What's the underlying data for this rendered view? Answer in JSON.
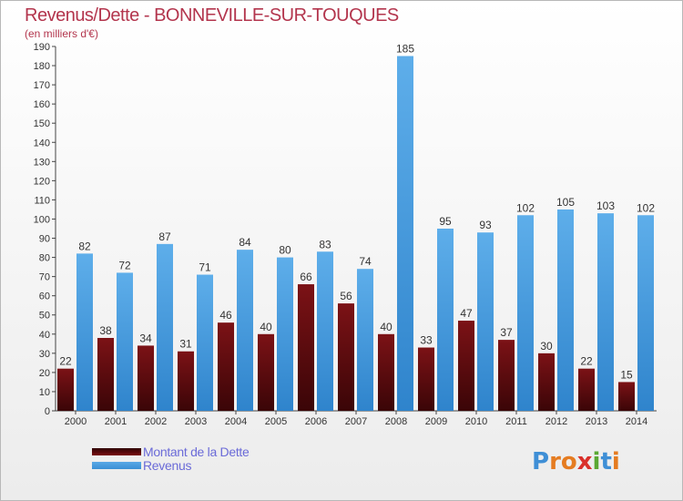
{
  "header": {
    "title": "Revenus/Dette - BONNEVILLE-SUR-TOUQUES",
    "subtitle": "(en milliers d'€)"
  },
  "chart_data": {
    "type": "bar",
    "categories": [
      "2000",
      "2001",
      "2002",
      "2003",
      "2004",
      "2005",
      "2006",
      "2007",
      "2008",
      "2009",
      "2010",
      "2011",
      "2012",
      "2013",
      "2014"
    ],
    "series": [
      {
        "name": "Montant de la Dette",
        "color": "#6e0b0e",
        "values": [
          22,
          38,
          34,
          31,
          46,
          40,
          66,
          56,
          40,
          33,
          47,
          37,
          30,
          22,
          15
        ]
      },
      {
        "name": "Revenus",
        "color": "#3f97dc",
        "values": [
          82,
          72,
          87,
          71,
          84,
          80,
          83,
          74,
          185,
          95,
          93,
          102,
          105,
          103,
          102
        ]
      }
    ],
    "ylim": [
      0,
      190
    ],
    "yticks": [
      0,
      10,
      20,
      30,
      40,
      50,
      60,
      70,
      80,
      90,
      100,
      110,
      120,
      130,
      140,
      150,
      160,
      170,
      180,
      190
    ],
    "grid": false,
    "legend": "bottom-left"
  },
  "legend": {
    "items": [
      {
        "label": "Montant de la Dette"
      },
      {
        "label": "Revenus"
      }
    ]
  },
  "logo": {
    "letters": [
      {
        "ch": "P",
        "color": "#3f8fd6"
      },
      {
        "ch": "r",
        "color": "#e57c21"
      },
      {
        "ch": "o",
        "color": "#e57c21"
      },
      {
        "ch": "x",
        "color": "#d9302a"
      },
      {
        "ch": "i",
        "color": "#5aa832"
      },
      {
        "ch": "t",
        "color": "#3f8fd6"
      },
      {
        "ch": "i",
        "color": "#e57c21"
      }
    ]
  }
}
